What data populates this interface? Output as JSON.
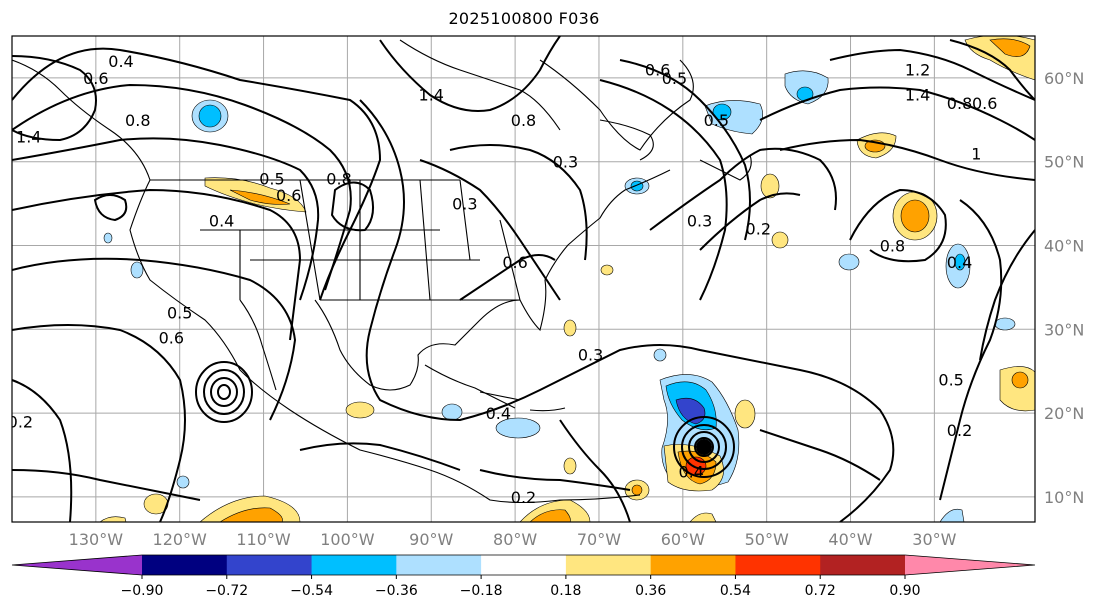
{
  "title": "2025100800 F036",
  "map": {
    "projection": "plate-carree",
    "extent": {
      "lon_min": -140,
      "lon_max": -18,
      "lat_min": 7,
      "lat_max": 65
    },
    "lat_labels": [
      "10°N",
      "20°N",
      "30°N",
      "40°N",
      "50°N",
      "60°N"
    ],
    "lat_values": [
      10,
      20,
      30,
      40,
      50,
      60
    ],
    "lon_labels": [
      "130°W",
      "120°W",
      "110°W",
      "100°W",
      "90°W",
      "80°W",
      "70°W",
      "60°W",
      "50°W",
      "40°W",
      "30°W"
    ],
    "lon_values": [
      -130,
      -120,
      -110,
      -100,
      -90,
      -80,
      -70,
      -60,
      -50,
      -40,
      -30
    ],
    "gridlines": true,
    "contour_labels": [
      {
        "text": "0.4",
        "lon": -127,
        "lat": 62
      },
      {
        "text": "0.6",
        "lon": -130,
        "lat": 60
      },
      {
        "text": "0.8",
        "lon": -125,
        "lat": 55
      },
      {
        "text": "1.4",
        "lon": -138,
        "lat": 53
      },
      {
        "text": "0.5",
        "lon": -109,
        "lat": 48
      },
      {
        "text": "0.8",
        "lon": -101,
        "lat": 48
      },
      {
        "text": "0.6",
        "lon": -107,
        "lat": 46
      },
      {
        "text": "0.4",
        "lon": -115,
        "lat": 43
      },
      {
        "text": "1.4",
        "lon": -90,
        "lat": 58
      },
      {
        "text": "0.8",
        "lon": -79,
        "lat": 55
      },
      {
        "text": "0.3",
        "lon": -74,
        "lat": 50
      },
      {
        "text": "0.3",
        "lon": -86,
        "lat": 45
      },
      {
        "text": "0.6",
        "lon": -80,
        "lat": 38
      },
      {
        "text": "0.5",
        "lon": -120,
        "lat": 32
      },
      {
        "text": "0.6",
        "lon": -121,
        "lat": 29
      },
      {
        "text": "0.2",
        "lon": -139,
        "lat": 19
      },
      {
        "text": "0.3",
        "lon": -71,
        "lat": 27
      },
      {
        "text": "0.4",
        "lon": -82,
        "lat": 20
      },
      {
        "text": "0.2",
        "lon": -79,
        "lat": 10
      },
      {
        "text": "0.4",
        "lon": -59,
        "lat": 13
      },
      {
        "text": "0.3",
        "lon": -58,
        "lat": 43
      },
      {
        "text": "0.2",
        "lon": -51,
        "lat": 42
      },
      {
        "text": "0.5",
        "lon": -56,
        "lat": 55
      },
      {
        "text": "0.5",
        "lon": -61,
        "lat": 60
      },
      {
        "text": "0.6",
        "lon": -63,
        "lat": 61
      },
      {
        "text": "1.2",
        "lon": -32,
        "lat": 61
      },
      {
        "text": "1.4",
        "lon": -32,
        "lat": 58
      },
      {
        "text": "0.6",
        "lon": -24,
        "lat": 57
      },
      {
        "text": "0.8",
        "lon": -27,
        "lat": 57
      },
      {
        "text": "1",
        "lon": -25,
        "lat": 51
      },
      {
        "text": "0.8",
        "lon": -35,
        "lat": 40
      },
      {
        "text": "0.4",
        "lon": -27,
        "lat": 38
      },
      {
        "text": "0.5",
        "lon": -28,
        "lat": 24
      },
      {
        "text": "0.2",
        "lon": -27,
        "lat": 18
      }
    ],
    "storm_center": {
      "lon": -60,
      "lat": 16.6
    }
  },
  "colorbar": {
    "ticks": [
      "−0.90",
      "−0.72",
      "−0.54",
      "−0.36",
      "−0.18",
      "0.18",
      "0.36",
      "0.54",
      "0.72",
      "0.90"
    ],
    "colors": [
      "#9933cc",
      "#000080",
      "#3344cc",
      "#00bfff",
      "#aee0ff",
      "#ffffff",
      "#ffe680",
      "#ffa200",
      "#ff3300",
      "#b22222",
      "#ff88aa"
    ]
  }
}
